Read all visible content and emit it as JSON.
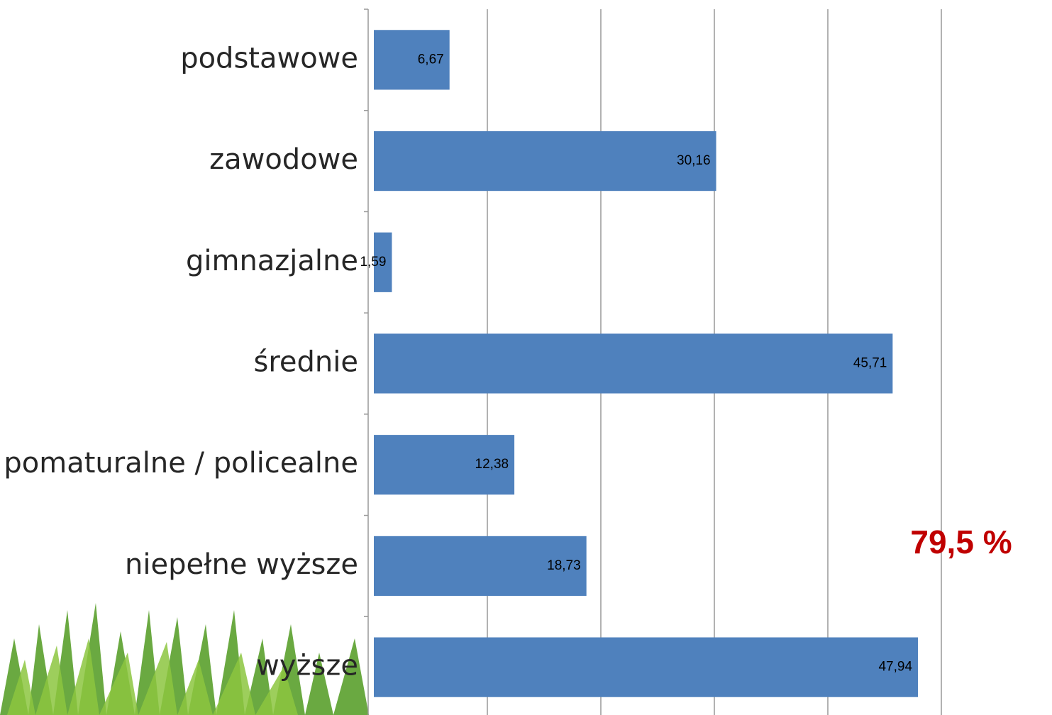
{
  "chart_data": {
    "type": "barh",
    "categories": [
      "podstawowe",
      "zawodowe",
      "gimnazjalne",
      "średnie",
      "pomaturalne / policealne",
      "niepełne wyższe",
      "wyższe"
    ],
    "values": [
      6.67,
      30.16,
      1.59,
      45.71,
      12.38,
      18.73,
      47.94
    ],
    "value_labels": [
      "6,67",
      "30,16",
      "1,59",
      "45,71",
      "12,38",
      "18,73",
      "47,94"
    ],
    "color": "#4f81bd",
    "xlim": [
      0,
      50
    ],
    "xticks": [
      0,
      10,
      20,
      30,
      40,
      50
    ],
    "grid": true,
    "annotation": "79,5 %",
    "annotation_color": "#c00000"
  }
}
